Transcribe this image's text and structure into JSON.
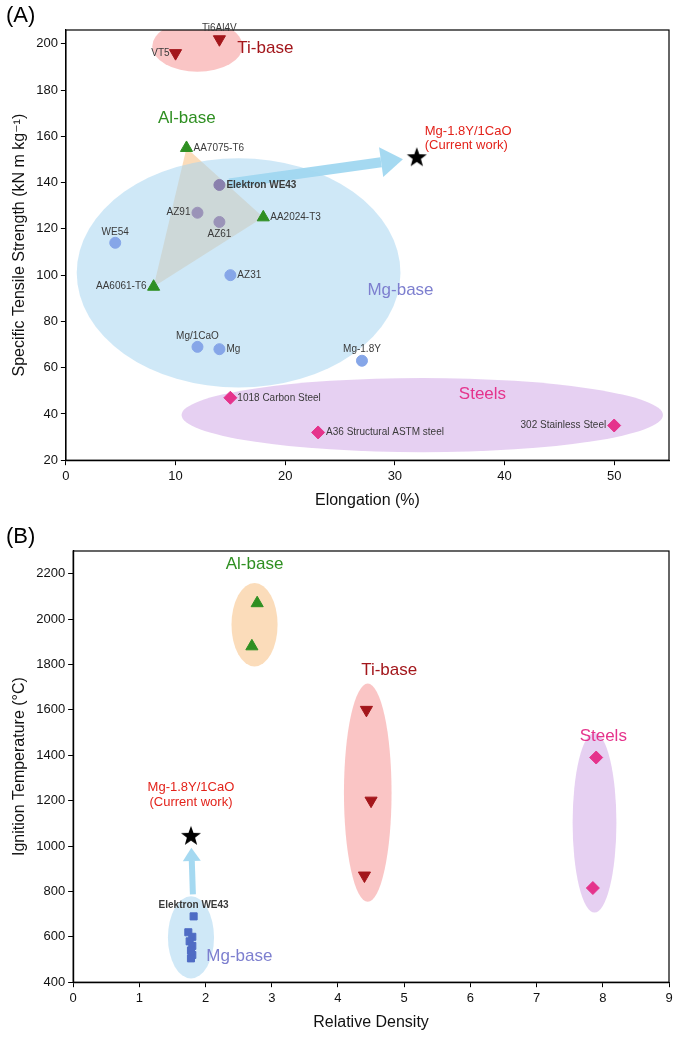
{
  "chart_data": [
    {
      "type": "scatter",
      "title": "(A)",
      "x_label": "Elongation (%)",
      "y_label": "Specific Tensile Strength (kN m kg⁻¹)",
      "xlim": [
        0,
        55
      ],
      "xticks": [
        0,
        10,
        20,
        30,
        40,
        50
      ],
      "ylim": [
        20,
        206
      ],
      "yticks": [
        20,
        40,
        60,
        80,
        100,
        120,
        140,
        160,
        180,
        200
      ],
      "grid": false,
      "series": [
        {
          "name": "Ti-base",
          "color": "#a3161b",
          "marker": "triangle-down",
          "x": [
            10,
            14
          ],
          "values": [
            196,
            202
          ],
          "point_labels": [
            "VT5",
            "Ti6Al4V"
          ]
        },
        {
          "name": "Al-base",
          "color": "#2f8f22",
          "marker": "triangle",
          "x": [
            11,
            18,
            8
          ],
          "values": [
            155,
            125,
            95
          ],
          "point_labels": [
            "AA7075-T6",
            "AA2024-T3",
            "AA6061-T6"
          ]
        },
        {
          "name": "Mg-base",
          "colors": [
            "#8a80ad",
            "#9a93b8",
            "#9a93b8",
            "#86a6e8",
            "#86a6e8",
            "#86a6e8",
            "#86a6e8",
            "#86a6e8"
          ],
          "marker": "circle",
          "x": [
            14,
            12,
            14,
            4.5,
            15,
            12,
            14,
            27
          ],
          "values": [
            139,
            127,
            123,
            114,
            100,
            69,
            68,
            63
          ],
          "point_labels": [
            "Elektron WE43",
            "AZ91",
            "AZ61",
            "WE54",
            "AZ31",
            "Mg/1CaO",
            "Mg",
            "Mg-1.8Y"
          ]
        },
        {
          "name": "Steels",
          "color": "#e5338c",
          "marker": "diamond",
          "x": [
            15,
            23,
            50
          ],
          "values": [
            47,
            32,
            35
          ],
          "point_labels": [
            "1018 Carbon Steel",
            "A36 Structural ASTM steel",
            "302 Stainless Steel"
          ]
        },
        {
          "name": "Mg-1.8Y/1CaO\n(Current work)",
          "color": "#000000",
          "marker": "star",
          "x": [
            32
          ],
          "values": [
            151
          ]
        }
      ]
    },
    {
      "type": "scatter",
      "title": "(B)",
      "x_label": "Relative Density",
      "y_label": "Ignition Temperature (°C)",
      "xlim": [
        0,
        9
      ],
      "xticks": [
        0,
        1,
        2,
        3,
        4,
        5,
        6,
        7,
        8,
        9
      ],
      "ylim": [
        400,
        2300
      ],
      "yticks": [
        400,
        600,
        800,
        1000,
        1200,
        1400,
        1600,
        1800,
        2000,
        2200
      ],
      "grid": false,
      "series": [
        {
          "name": "Ti-base",
          "color": "#a3161b",
          "marker": "triangle-down",
          "x": [
            4.43,
            4.5,
            4.4
          ],
          "values": [
            1600,
            1200,
            870
          ]
        },
        {
          "name": "Al-base",
          "color": "#2f8f22",
          "marker": "triangle",
          "x": [
            2.78,
            2.7
          ],
          "values": [
            2070,
            1880
          ]
        },
        {
          "name": "Mg-base",
          "color": "#4f6cc4",
          "marker": "square",
          "x": [
            1.82,
            1.74,
            1.8,
            1.76,
            1.8,
            1.78,
            1.8,
            1.78
          ],
          "values": [
            690,
            620,
            600,
            580,
            560,
            540,
            520,
            505
          ],
          "point_labels": [
            "Elektron WE43",
            null,
            null,
            null,
            null,
            null,
            null,
            null
          ]
        },
        {
          "name": "Steels",
          "color": "#e5338c",
          "marker": "diamond",
          "x": [
            7.9,
            7.85
          ],
          "values": [
            1390,
            815
          ]
        },
        {
          "name": "Mg-1.8Y/1CaO\n(Current work)",
          "color": "#000000",
          "marker": "star",
          "x": [
            1.78
          ],
          "values": [
            1045
          ]
        }
      ]
    }
  ]
}
